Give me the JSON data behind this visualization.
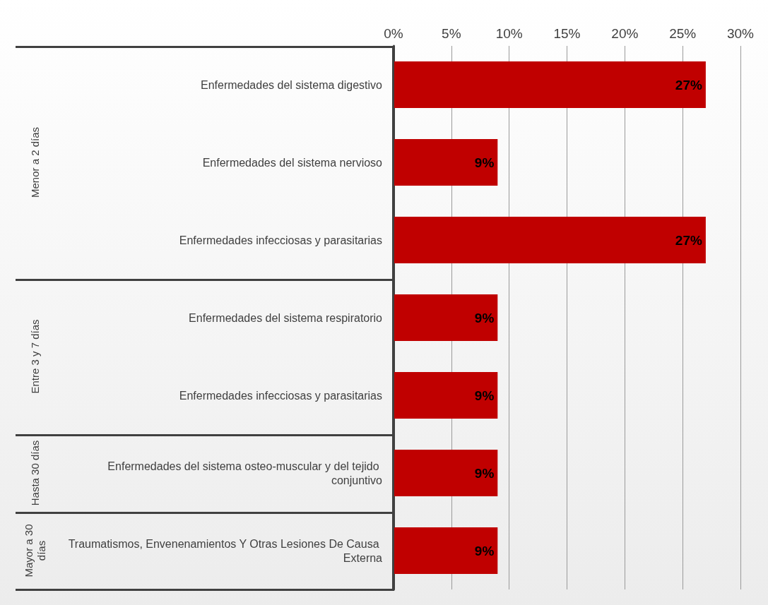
{
  "chart_data": {
    "type": "bar",
    "orientation": "horizontal",
    "categories": [
      "Enfermedades del sistema digestivo",
      "Enfermedades del sistema nervioso",
      "Enfermedades infecciosas y parasitarias",
      "Enfermedades del sistema respiratorio",
      "Enfermedades infecciosas y parasitarias",
      "Enfermedades del sistema osteo-muscular y del tejido conjuntivo",
      "Traumatismos, Envenenamientos Y Otras Lesiones De Causa Externa"
    ],
    "values": [
      27,
      9,
      27,
      9,
      9,
      9,
      9
    ],
    "color": "#c00000",
    "xlim": [
      0,
      30
    ],
    "xticks": [
      {
        "value": 0,
        "label": "0%"
      },
      {
        "value": 5,
        "label": "5%"
      },
      {
        "value": 10,
        "label": "10%"
      },
      {
        "value": 15,
        "label": "15%"
      },
      {
        "value": 20,
        "label": "20%"
      },
      {
        "value": 25,
        "label": "25%"
      },
      {
        "value": 30,
        "label": "30%"
      }
    ],
    "grid": "x",
    "value_labels": [
      "27%",
      "9%",
      "27%",
      "9%",
      "9%",
      "9%",
      "9%"
    ],
    "annotations": [
      "Menor a 2 días",
      "Entre 3 y 7 días",
      "Hasta 30 días",
      "Mayor a 30 días"
    ]
  }
}
